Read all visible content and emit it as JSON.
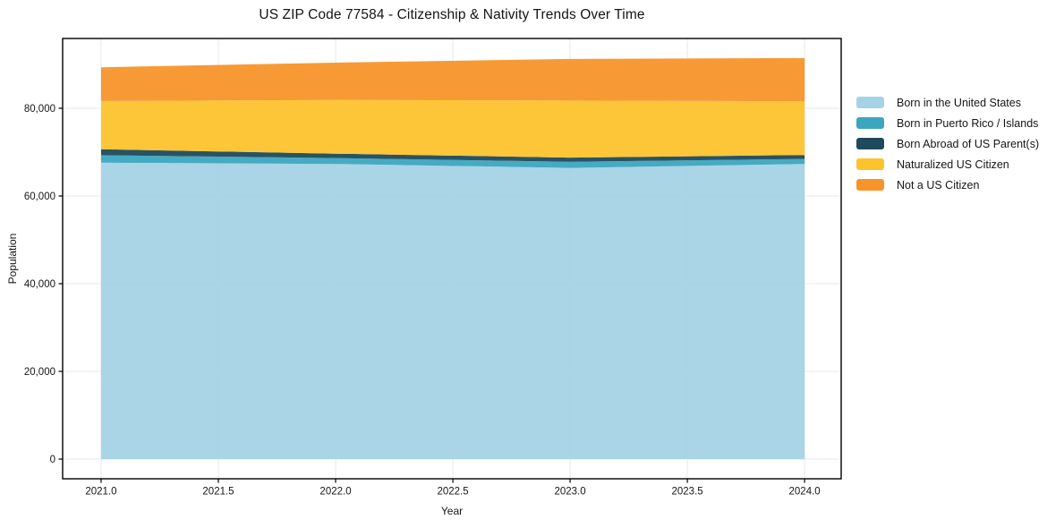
{
  "chart_data": {
    "type": "area",
    "stacked": true,
    "title": "US ZIP Code 77584 - Citizenship & Nativity Trends Over Time",
    "xlabel": "Year",
    "ylabel": "Population",
    "x": [
      2021,
      2022,
      2023,
      2024
    ],
    "series": [
      {
        "name": "Born in the United States",
        "color": "#a4d3e6",
        "values": [
          67600,
          67300,
          66400,
          67300
        ]
      },
      {
        "name": "Born in Puerto Rico / Islands",
        "color": "#3ba6bf",
        "values": [
          1700,
          1350,
          1400,
          1150
        ]
      },
      {
        "name": "Born Abroad of US Parent(s)",
        "color": "#1e4a5c",
        "values": [
          1350,
          1000,
          950,
          900
        ]
      },
      {
        "name": "Naturalized US Citizen",
        "color": "#fcc32d",
        "values": [
          11000,
          12250,
          13000,
          12250
        ]
      },
      {
        "name": "Not a US Citizen",
        "color": "#f7952a",
        "values": [
          7700,
          8500,
          9500,
          9850
        ]
      }
    ],
    "x_ticks": [
      2021.0,
      2021.5,
      2022.0,
      2022.5,
      2023.0,
      2023.5,
      2024.0
    ],
    "x_tick_labels": [
      "2021.0",
      "2021.5",
      "2022.0",
      "2022.5",
      "2023.0",
      "2023.5",
      "2024.0"
    ],
    "y_ticks": [
      0,
      20000,
      40000,
      60000,
      80000
    ],
    "y_tick_labels": [
      "0",
      "20,000",
      "40,000",
      "60,000",
      "80,000"
    ],
    "xlim": [
      2020.836,
      2024.156
    ],
    "ylim": [
      -4490,
      95918
    ],
    "grid": true,
    "legend_position": "right",
    "colors": {
      "grid": "#e7e7e7",
      "spine": "#000000",
      "text": "#151515"
    }
  }
}
